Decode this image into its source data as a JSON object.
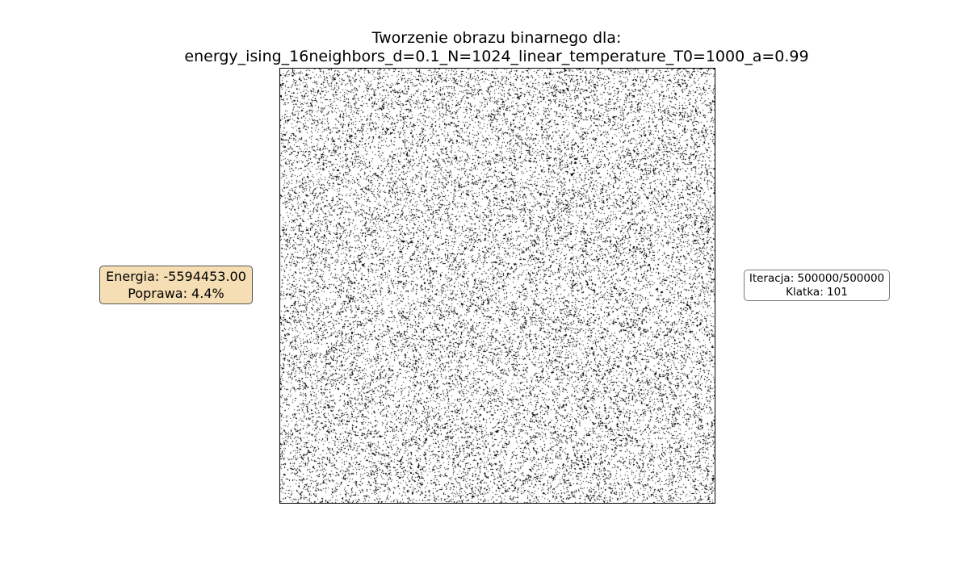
{
  "title": {
    "line1": "Tworzenie obrazu binarnego dla:",
    "line2": "energy_ising_16neighbors_d=0.1_N=1024_linear_temperature_T0=1000_a=0.99"
  },
  "energy_box": {
    "energy": "Energia: -5594453.00",
    "improvement": "Poprawa: 4.4%",
    "background_color": "#f5deb3"
  },
  "iteration_box": {
    "iteration": "Iteracja: 500000/500000",
    "frame": "Klatka: 101"
  },
  "binary_image": {
    "grid_size": 1024,
    "black_fraction": 0.12,
    "colors": {
      "on": "#000000",
      "off": "#ffffff"
    }
  }
}
